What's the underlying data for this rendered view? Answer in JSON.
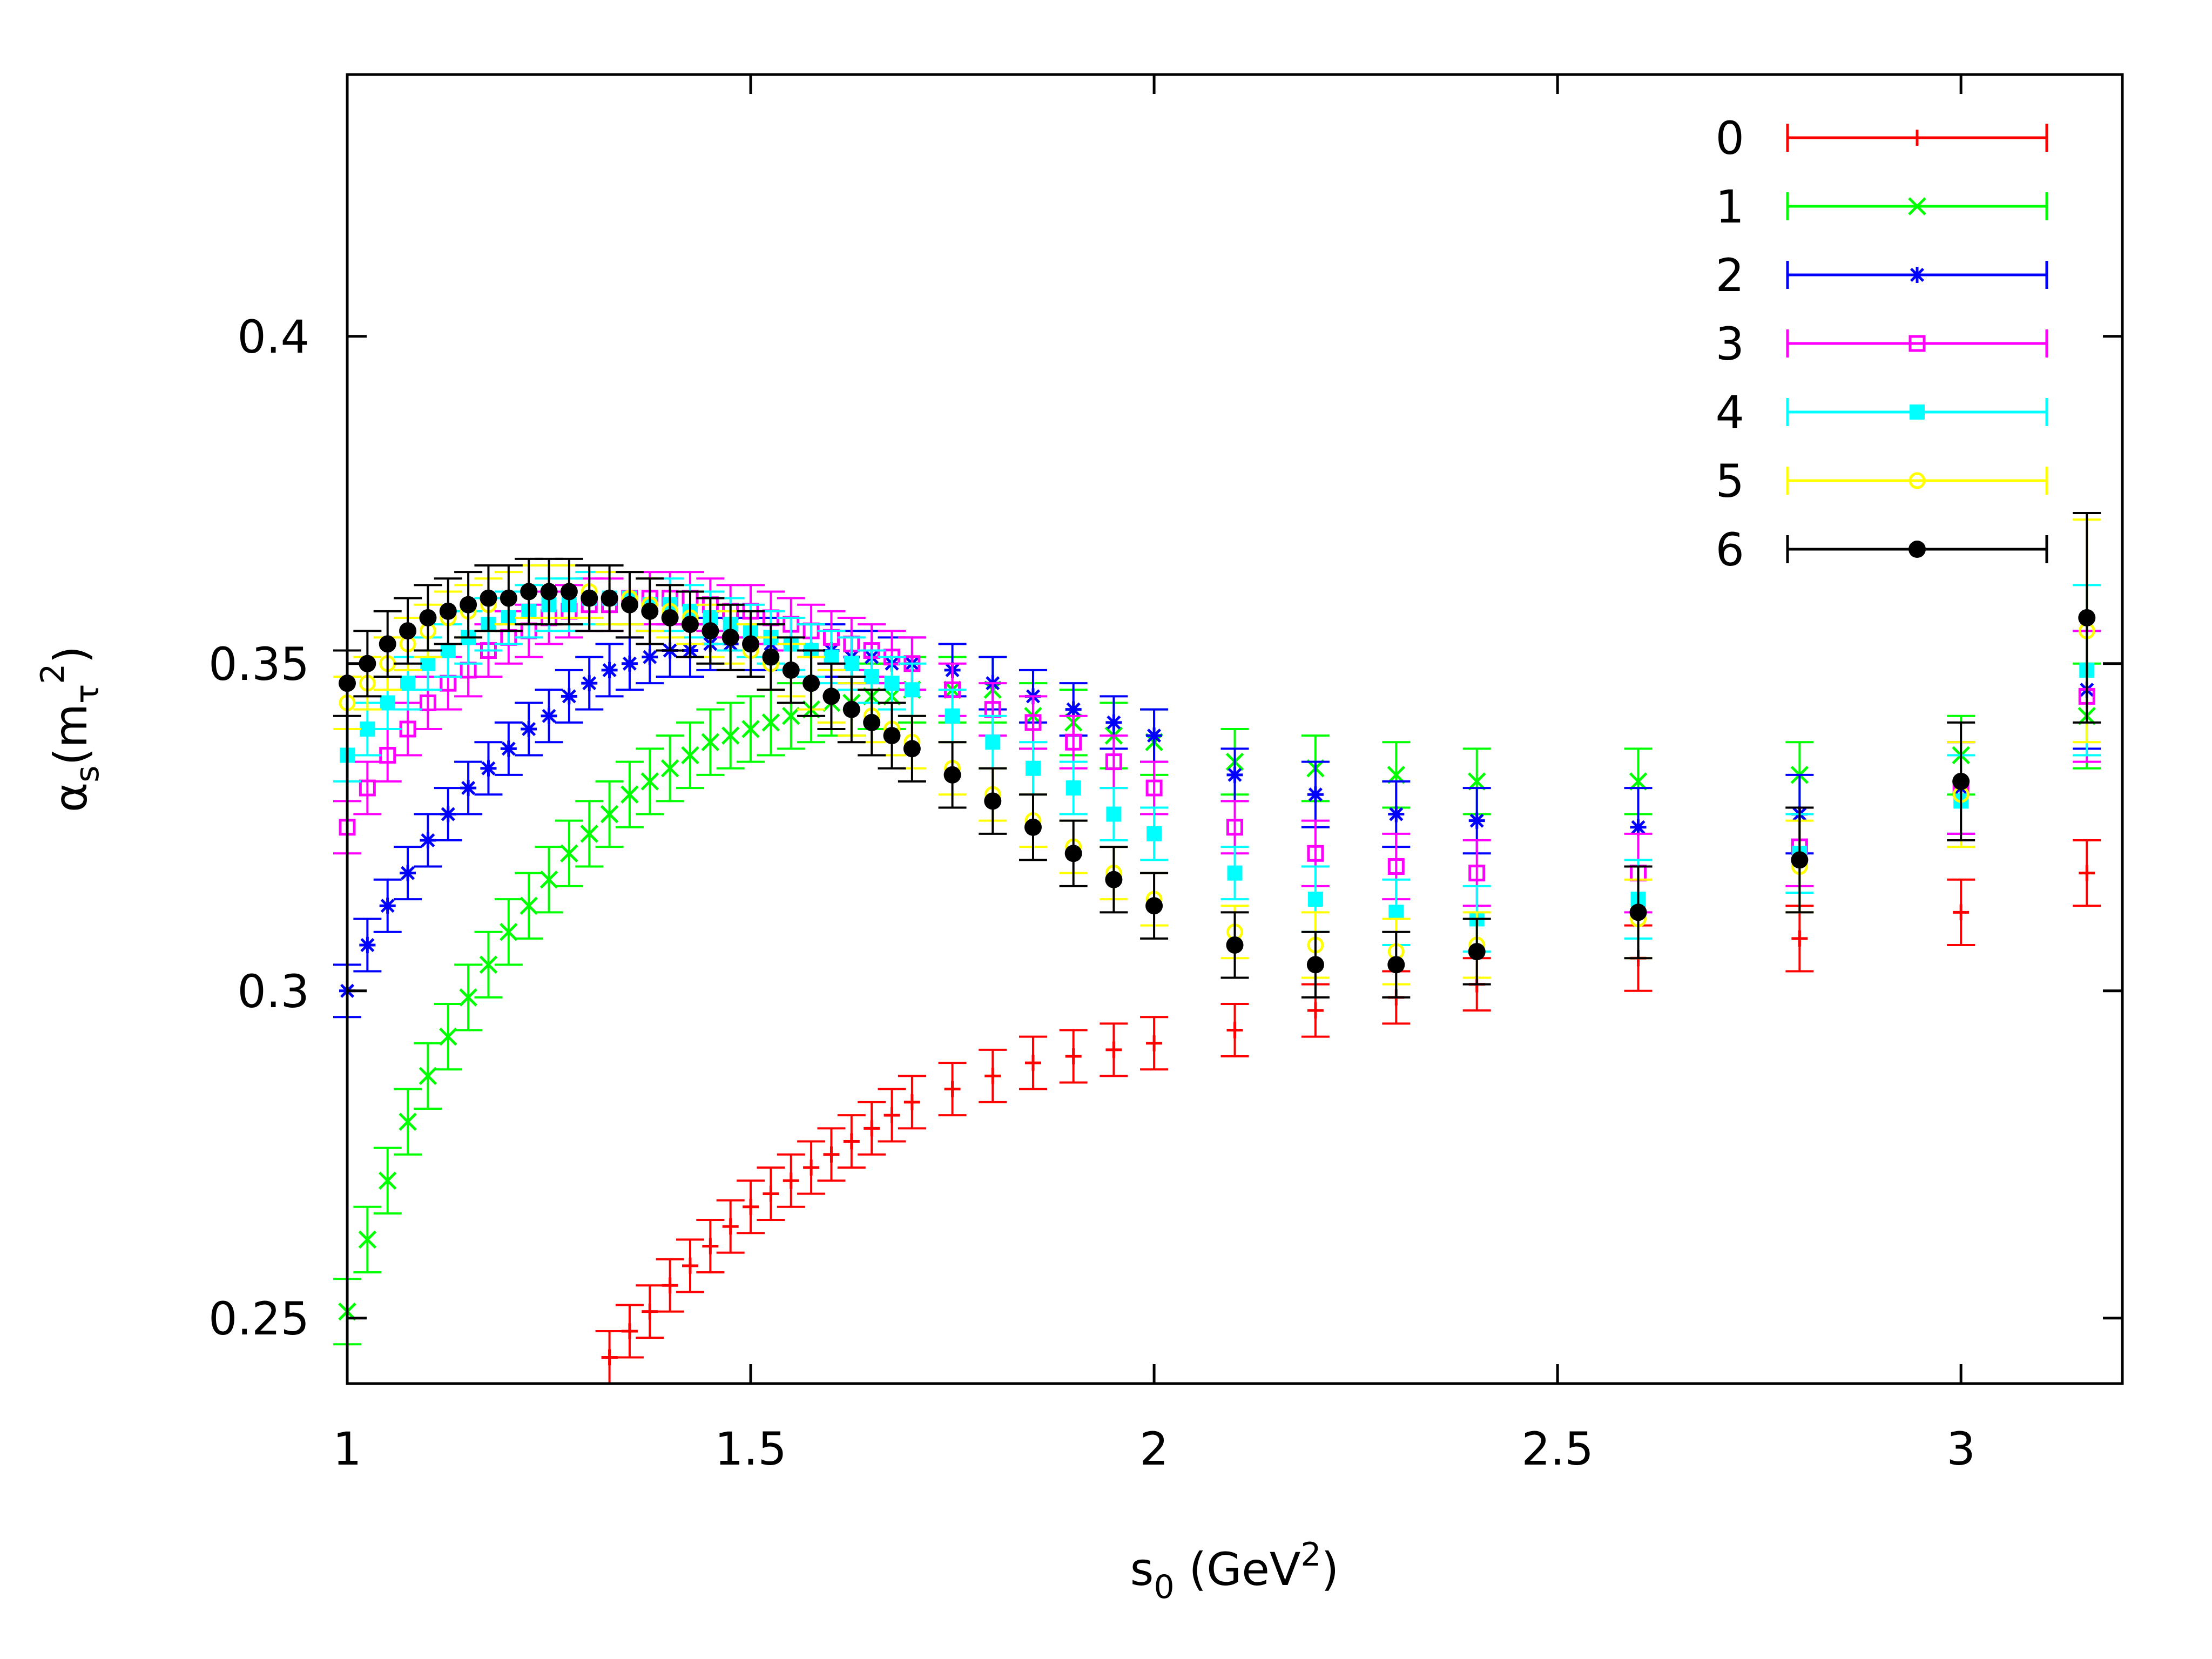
{
  "chart_data": {
    "type": "scatter",
    "title": "",
    "xlabel": {
      "base": "s",
      "sub": "0",
      "rest": " (GeV",
      "sup": "2",
      "end": ")"
    },
    "ylabel": {
      "alpha": "α",
      "sub": "s",
      "open": "(m",
      "tau": "τ",
      "sup": "2",
      "close": ")"
    },
    "xlim": [
      1.0,
      3.2
    ],
    "ylim": [
      0.24,
      0.44
    ],
    "xticks": [
      1,
      1.5,
      2,
      2.5,
      3
    ],
    "xtick_labels": [
      "1",
      "1.5",
      "2",
      "2.5",
      "3"
    ],
    "yticks": [
      0.25,
      0.3,
      0.35,
      0.4
    ],
    "ytick_labels": [
      "0.25",
      "0.3",
      "0.35",
      "0.4"
    ],
    "grid": false,
    "legend_position": "top-right",
    "x": [
      1.0,
      1.025,
      1.05,
      1.075,
      1.1,
      1.125,
      1.15,
      1.175,
      1.2,
      1.225,
      1.25,
      1.275,
      1.3,
      1.325,
      1.35,
      1.375,
      1.4,
      1.425,
      1.45,
      1.475,
      1.5,
      1.525,
      1.55,
      1.575,
      1.6,
      1.625,
      1.65,
      1.675,
      1.7,
      1.75,
      1.8,
      1.85,
      1.9,
      1.95,
      2.0,
      2.1,
      2.2,
      2.3,
      2.4,
      2.6,
      2.8,
      3.0,
      3.156
    ],
    "series": [
      {
        "name": "0",
        "color": "#ff0000",
        "marker": "plus",
        "values": [
          null,
          null,
          null,
          null,
          null,
          null,
          null,
          null,
          null,
          null,
          null,
          null,
          null,
          0.244,
          0.248,
          0.251,
          0.255,
          0.258,
          0.261,
          0.264,
          0.267,
          0.269,
          0.271,
          0.273,
          0.275,
          0.277,
          0.279,
          0.281,
          0.283,
          0.285,
          0.287,
          0.289,
          0.29,
          0.291,
          0.292,
          0.294,
          0.297,
          0.299,
          0.301,
          0.305,
          0.308,
          0.312,
          0.318
        ],
        "errors": [
          null,
          null,
          null,
          null,
          null,
          null,
          null,
          null,
          null,
          null,
          null,
          null,
          null,
          0.004,
          0.004,
          0.004,
          0.004,
          0.004,
          0.004,
          0.004,
          0.004,
          0.004,
          0.004,
          0.004,
          0.004,
          0.004,
          0.004,
          0.004,
          0.004,
          0.004,
          0.004,
          0.004,
          0.004,
          0.004,
          0.004,
          0.004,
          0.004,
          0.004,
          0.004,
          0.005,
          0.005,
          0.005,
          0.005
        ]
      },
      {
        "name": "1",
        "color": "#00ff00",
        "marker": "cross",
        "values": [
          0.251,
          0.262,
          0.271,
          0.28,
          0.287,
          0.293,
          0.299,
          0.304,
          0.309,
          0.313,
          0.317,
          0.321,
          0.324,
          0.327,
          0.33,
          0.332,
          0.334,
          0.336,
          0.338,
          0.339,
          0.34,
          0.341,
          0.342,
          0.343,
          0.344,
          0.344,
          0.345,
          0.345,
          0.346,
          0.346,
          0.346,
          0.342,
          0.341,
          0.339,
          0.338,
          0.335,
          0.334,
          0.333,
          0.332,
          0.332,
          0.333,
          0.336,
          0.342
        ],
        "errors": [
          0.005,
          0.005,
          0.005,
          0.005,
          0.005,
          0.005,
          0.005,
          0.005,
          0.005,
          0.005,
          0.005,
          0.005,
          0.005,
          0.005,
          0.005,
          0.005,
          0.005,
          0.005,
          0.005,
          0.005,
          0.005,
          0.005,
          0.005,
          0.005,
          0.005,
          0.005,
          0.005,
          0.005,
          0.005,
          0.005,
          0.005,
          0.005,
          0.005,
          0.005,
          0.005,
          0.005,
          0.005,
          0.005,
          0.005,
          0.005,
          0.005,
          0.006,
          0.008
        ]
      },
      {
        "name": "2",
        "color": "#0000ff",
        "marker": "star",
        "values": [
          0.3,
          0.307,
          0.313,
          0.318,
          0.323,
          0.327,
          0.331,
          0.334,
          0.337,
          0.34,
          0.342,
          0.345,
          0.347,
          0.349,
          0.35,
          0.351,
          0.352,
          0.352,
          0.353,
          0.353,
          0.353,
          0.353,
          0.353,
          0.352,
          0.352,
          0.351,
          0.351,
          0.35,
          0.35,
          0.349,
          0.347,
          0.345,
          0.343,
          0.341,
          0.339,
          0.333,
          0.33,
          0.327,
          0.326,
          0.325,
          0.327,
          0.331,
          0.346
        ],
        "errors": [
          0.004,
          0.004,
          0.004,
          0.004,
          0.004,
          0.004,
          0.004,
          0.004,
          0.004,
          0.004,
          0.004,
          0.004,
          0.004,
          0.004,
          0.004,
          0.004,
          0.004,
          0.004,
          0.004,
          0.004,
          0.004,
          0.004,
          0.004,
          0.004,
          0.004,
          0.004,
          0.004,
          0.004,
          0.004,
          0.004,
          0.004,
          0.004,
          0.004,
          0.004,
          0.004,
          0.004,
          0.005,
          0.005,
          0.005,
          0.006,
          0.006,
          0.007,
          0.009
        ]
      },
      {
        "name": "3",
        "color": "#ff00ff",
        "marker": "square",
        "values": [
          0.325,
          0.331,
          0.336,
          0.34,
          0.344,
          0.347,
          0.349,
          0.352,
          0.354,
          0.355,
          0.357,
          0.358,
          0.359,
          0.359,
          0.36,
          0.36,
          0.36,
          0.36,
          0.359,
          0.358,
          0.358,
          0.357,
          0.356,
          0.355,
          0.354,
          0.353,
          0.352,
          0.351,
          0.35,
          0.346,
          0.343,
          0.341,
          0.338,
          0.335,
          0.331,
          0.325,
          0.321,
          0.319,
          0.318,
          0.318,
          0.322,
          0.331,
          0.345
        ],
        "errors": [
          0.004,
          0.004,
          0.004,
          0.004,
          0.004,
          0.004,
          0.004,
          0.004,
          0.004,
          0.004,
          0.004,
          0.004,
          0.004,
          0.004,
          0.004,
          0.004,
          0.004,
          0.004,
          0.004,
          0.004,
          0.004,
          0.004,
          0.004,
          0.004,
          0.004,
          0.004,
          0.004,
          0.004,
          0.004,
          0.004,
          0.004,
          0.004,
          0.004,
          0.004,
          0.004,
          0.004,
          0.005,
          0.005,
          0.005,
          0.006,
          0.006,
          0.007,
          0.01
        ]
      },
      {
        "name": "4",
        "color": "#00ffff",
        "marker": "filled-square",
        "values": [
          0.336,
          0.34,
          0.344,
          0.347,
          0.35,
          0.352,
          0.354,
          0.356,
          0.357,
          0.358,
          0.359,
          0.359,
          0.36,
          0.36,
          0.36,
          0.359,
          0.359,
          0.358,
          0.357,
          0.356,
          0.355,
          0.354,
          0.353,
          0.352,
          0.351,
          0.35,
          0.348,
          0.347,
          0.346,
          0.342,
          0.338,
          0.334,
          0.331,
          0.327,
          0.324,
          0.318,
          0.314,
          0.312,
          0.311,
          0.314,
          0.321,
          0.329,
          0.349
        ],
        "errors": [
          0.004,
          0.004,
          0.004,
          0.004,
          0.004,
          0.004,
          0.004,
          0.004,
          0.004,
          0.004,
          0.004,
          0.004,
          0.004,
          0.004,
          0.004,
          0.004,
          0.004,
          0.004,
          0.004,
          0.004,
          0.004,
          0.004,
          0.004,
          0.004,
          0.004,
          0.004,
          0.004,
          0.004,
          0.004,
          0.004,
          0.004,
          0.004,
          0.004,
          0.004,
          0.004,
          0.004,
          0.005,
          0.005,
          0.005,
          0.006,
          0.006,
          0.007,
          0.013
        ]
      },
      {
        "name": "5",
        "color": "#ffff00",
        "marker": "circle",
        "values": [
          0.344,
          0.347,
          0.35,
          0.353,
          0.355,
          0.357,
          0.358,
          0.359,
          0.36,
          0.361,
          0.361,
          0.361,
          0.361,
          0.36,
          0.36,
          0.359,
          0.358,
          0.357,
          0.355,
          0.354,
          0.352,
          0.35,
          0.349,
          0.347,
          0.345,
          0.343,
          0.342,
          0.34,
          0.338,
          0.334,
          0.33,
          0.326,
          0.322,
          0.318,
          0.314,
          0.309,
          0.307,
          0.306,
          0.307,
          0.311,
          0.319,
          0.33,
          0.355
        ],
        "errors": [
          0.004,
          0.004,
          0.004,
          0.004,
          0.004,
          0.004,
          0.004,
          0.004,
          0.004,
          0.004,
          0.004,
          0.004,
          0.004,
          0.004,
          0.004,
          0.004,
          0.004,
          0.004,
          0.004,
          0.004,
          0.004,
          0.004,
          0.004,
          0.004,
          0.004,
          0.004,
          0.004,
          0.004,
          0.004,
          0.004,
          0.004,
          0.004,
          0.004,
          0.004,
          0.004,
          0.004,
          0.005,
          0.005,
          0.005,
          0.006,
          0.007,
          0.008,
          0.017
        ]
      },
      {
        "name": "6",
        "color": "#000000",
        "marker": "filled-circle",
        "values": [
          0.347,
          0.35,
          0.353,
          0.355,
          0.357,
          0.358,
          0.359,
          0.36,
          0.36,
          0.361,
          0.361,
          0.361,
          0.36,
          0.36,
          0.359,
          0.358,
          0.357,
          0.356,
          0.355,
          0.354,
          0.353,
          0.351,
          0.349,
          0.347,
          0.345,
          0.343,
          0.341,
          0.339,
          0.337,
          0.333,
          0.329,
          0.325,
          0.321,
          0.317,
          0.313,
          0.307,
          0.304,
          0.304,
          0.306,
          0.312,
          0.32,
          0.332,
          0.357
        ],
        "errors": [
          0.005,
          0.005,
          0.005,
          0.005,
          0.005,
          0.005,
          0.005,
          0.005,
          0.005,
          0.005,
          0.005,
          0.005,
          0.005,
          0.005,
          0.005,
          0.005,
          0.005,
          0.005,
          0.005,
          0.005,
          0.005,
          0.005,
          0.005,
          0.005,
          0.005,
          0.005,
          0.005,
          0.005,
          0.005,
          0.005,
          0.005,
          0.005,
          0.005,
          0.005,
          0.005,
          0.005,
          0.005,
          0.005,
          0.005,
          0.007,
          0.008,
          0.009,
          0.016
        ]
      }
    ]
  }
}
